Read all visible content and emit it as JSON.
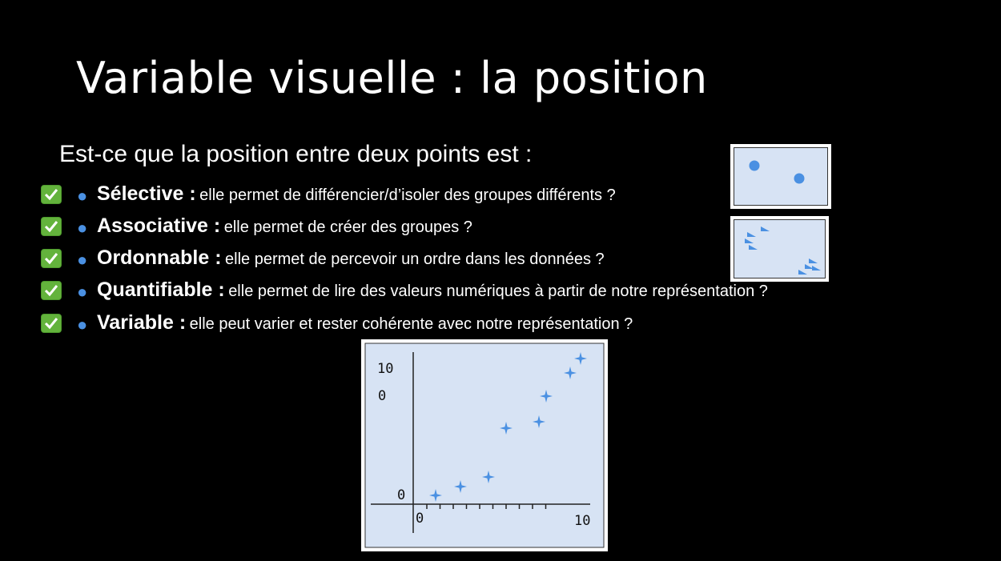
{
  "slide": {
    "title": "Variable visuelle : la position",
    "intro": "Est-ce que la position entre deux points est :"
  },
  "bullets": [
    {
      "term": "Sélective :",
      "desc": "elle permet de différencier/d’isoler des groupes différents ?"
    },
    {
      "term": "Associative :",
      "desc": "elle permet de créer des groupes ?"
    },
    {
      "term": "Ordonnable :",
      "desc": "elle permet de percevoir un ordre dans les données ?"
    },
    {
      "term": "Quantifiable :",
      "desc": "elle permet de lire des valeurs numériques à partir de notre représentation ?"
    },
    {
      "term": "Variable :",
      "desc": "elle peut varier et rester cohérente avec notre représentation ?"
    }
  ],
  "icons": {
    "check": "check-mark-icon",
    "bullet": "bullet-icon"
  },
  "colors": {
    "check_green": "#63b33c",
    "bullet_blue": "#4a90e2",
    "panel_bg": "#d7e3f4",
    "marker": "#4a90e2"
  },
  "plot": {
    "y_tick_top": "10",
    "y_tick_top_zero": "0",
    "y_tick_zero": "0",
    "x_tick_zero": "0",
    "x_tick_ten": "10"
  }
}
